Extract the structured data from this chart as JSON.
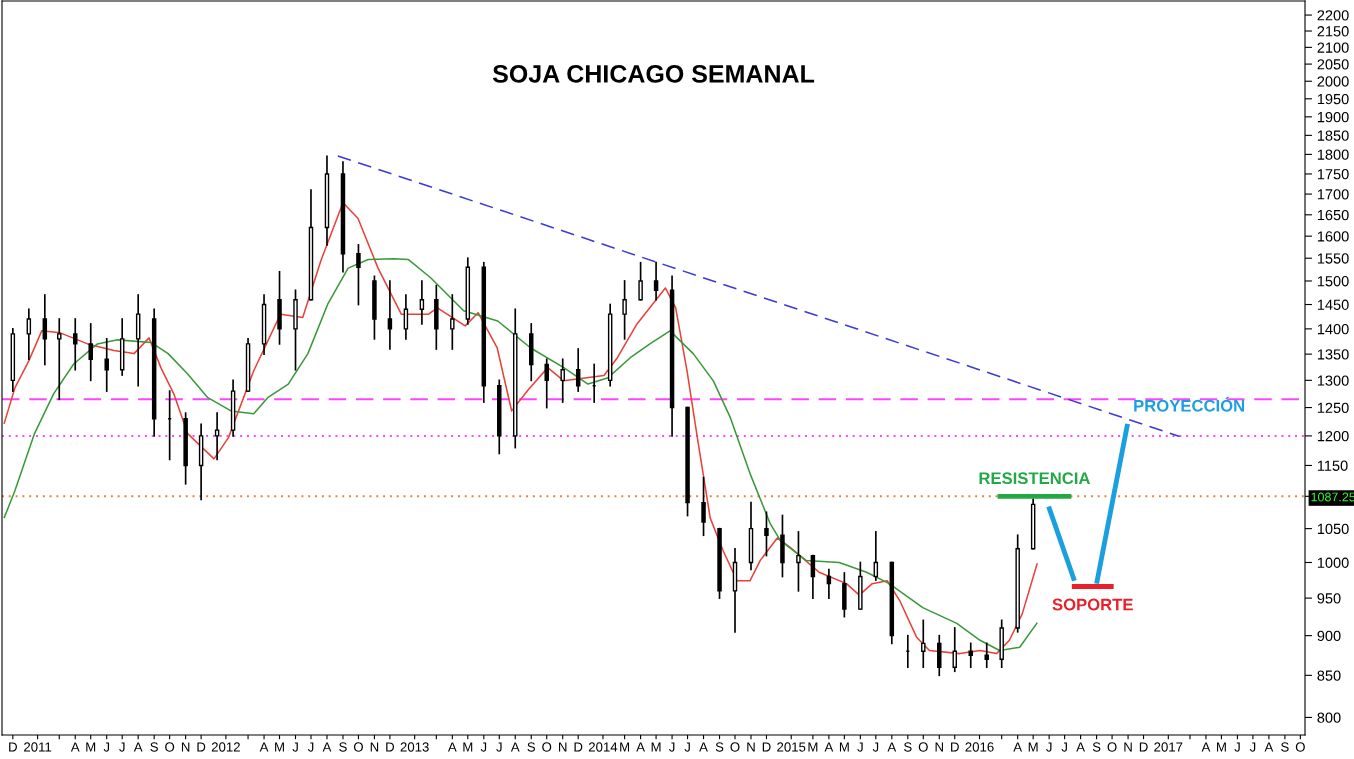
{
  "chart_data": {
    "type": "candlestick",
    "title": "SOJA CHICAGO SEMANAL",
    "color": "#000000",
    "x": [
      "2010-12-15",
      "2011-01-15",
      "2011-02-15",
      "2011-03-15",
      "2011-04-15",
      "2011-05-15",
      "2011-06-15",
      "2011-07-15",
      "2011-08-15",
      "2011-09-15",
      "2011-10-15",
      "2011-11-15",
      "2011-12-15",
      "2012-01-15",
      "2012-02-15",
      "2012-03-15",
      "2012-04-15",
      "2012-05-15",
      "2012-06-15",
      "2012-07-15",
      "2012-08-15",
      "2012-09-15",
      "2012-10-15",
      "2012-11-15",
      "2012-12-15",
      "2013-01-15",
      "2013-02-15",
      "2013-03-15",
      "2013-04-15",
      "2013-05-15",
      "2013-06-15",
      "2013-07-15",
      "2013-08-15",
      "2013-09-15",
      "2013-10-15",
      "2013-11-15",
      "2013-12-15",
      "2014-01-15",
      "2014-02-15",
      "2014-03-15",
      "2014-04-15",
      "2014-05-15",
      "2014-06-15",
      "2014-07-15",
      "2014-08-15",
      "2014-09-15",
      "2014-10-15",
      "2014-11-15",
      "2014-12-15",
      "2015-01-15",
      "2015-02-15",
      "2015-03-15",
      "2015-04-15",
      "2015-05-15",
      "2015-06-15",
      "2015-07-15",
      "2015-08-15",
      "2015-09-15",
      "2015-10-15",
      "2015-11-15",
      "2015-12-15",
      "2016-01-15",
      "2016-02-15",
      "2016-03-15",
      "2016-04-15",
      "2016-05-15"
    ],
    "ohlc": [
      [
        1300,
        1400,
        1280,
        1390
      ],
      [
        1390,
        1440,
        1340,
        1420
      ],
      [
        1420,
        1470,
        1330,
        1380
      ],
      [
        1380,
        1420,
        1265,
        1390
      ],
      [
        1390,
        1420,
        1320,
        1370
      ],
      [
        1370,
        1410,
        1300,
        1340
      ],
      [
        1340,
        1380,
        1280,
        1320
      ],
      [
        1320,
        1420,
        1310,
        1380
      ],
      [
        1380,
        1470,
        1290,
        1430
      ],
      [
        1420,
        1440,
        1200,
        1230
      ],
      [
        1230,
        1280,
        1160,
        1230
      ],
      [
        1230,
        1240,
        1120,
        1150
      ],
      [
        1150,
        1220,
        1095,
        1200
      ],
      [
        1200,
        1240,
        1160,
        1210
      ],
      [
        1210,
        1300,
        1200,
        1280
      ],
      [
        1280,
        1380,
        1280,
        1370
      ],
      [
        1370,
        1470,
        1350,
        1450
      ],
      [
        1460,
        1520,
        1370,
        1400
      ],
      [
        1400,
        1480,
        1320,
        1460
      ],
      [
        1460,
        1710,
        1460,
        1620
      ],
      [
        1620,
        1795,
        1580,
        1750
      ],
      [
        1750,
        1780,
        1520,
        1560
      ],
      [
        1560,
        1580,
        1450,
        1530
      ],
      [
        1500,
        1510,
        1380,
        1420
      ],
      [
        1420,
        1500,
        1360,
        1400
      ],
      [
        1400,
        1470,
        1380,
        1440
      ],
      [
        1440,
        1500,
        1410,
        1460
      ],
      [
        1460,
        1490,
        1360,
        1400
      ],
      [
        1400,
        1470,
        1360,
        1420
      ],
      [
        1420,
        1550,
        1410,
        1530
      ],
      [
        1530,
        1540,
        1260,
        1290
      ],
      [
        1290,
        1300,
        1170,
        1200
      ],
      [
        1200,
        1440,
        1180,
        1390
      ],
      [
        1390,
        1410,
        1300,
        1330
      ],
      [
        1330,
        1340,
        1250,
        1300
      ],
      [
        1300,
        1340,
        1260,
        1320
      ],
      [
        1320,
        1360,
        1280,
        1290
      ],
      [
        1290,
        1330,
        1260,
        1290
      ],
      [
        1300,
        1450,
        1290,
        1430
      ],
      [
        1430,
        1500,
        1380,
        1460
      ],
      [
        1460,
        1540,
        1460,
        1500
      ],
      [
        1500,
        1540,
        1460,
        1480
      ],
      [
        1480,
        1510,
        1200,
        1250
      ],
      [
        1250,
        1250,
        1070,
        1090
      ],
      [
        1090,
        1130,
        1040,
        1060
      ],
      [
        1050,
        1050,
        950,
        960
      ],
      [
        960,
        1020,
        905,
        1000
      ],
      [
        1000,
        1090,
        990,
        1050
      ],
      [
        1050,
        1075,
        1010,
        1040
      ],
      [
        1040,
        1070,
        980,
        1000
      ],
      [
        1000,
        1045,
        960,
        1010
      ],
      [
        1010,
        1010,
        950,
        980
      ],
      [
        980,
        990,
        950,
        970
      ],
      [
        970,
        985,
        925,
        935
      ],
      [
        935,
        1000,
        935,
        980
      ],
      [
        980,
        1045,
        975,
        1000
      ],
      [
        1000,
        1000,
        890,
        900
      ],
      [
        880,
        900,
        860,
        880
      ],
      [
        880,
        920,
        860,
        890
      ],
      [
        890,
        900,
        850,
        860
      ],
      [
        860,
        910,
        855,
        880
      ],
      [
        880,
        890,
        860,
        875
      ],
      [
        875,
        890,
        860,
        870
      ],
      [
        870,
        920,
        860,
        910
      ],
      [
        910,
        1040,
        905,
        1020
      ],
      [
        1020,
        1095,
        1020,
        1087.25
      ]
    ],
    "series": [
      {
        "type": "line",
        "color": "#e8413a",
        "x": [
          "2010-11-28",
          "2010-12-19",
          "2011-01-15",
          "2011-02-09",
          "2011-03-17",
          "2011-05-09",
          "2011-06-29",
          "2011-08-07",
          "2011-09-05",
          "2011-09-28",
          "2011-10-23",
          "2011-11-19",
          "2012-01-09",
          "2012-02-06",
          "2012-03-26",
          "2012-05-17",
          "2012-06-29",
          "2012-08-03",
          "2012-09-15",
          "2012-10-14",
          "2012-11-22",
          "2013-01-06",
          "2013-02-28",
          "2013-03-17",
          "2013-05-10",
          "2013-06-04",
          "2013-07-11",
          "2013-08-08",
          "2013-09-08",
          "2013-10-17",
          "2013-11-17",
          "2014-02-03",
          "2014-03-01",
          "2014-04-08",
          "2014-06-02",
          "2014-06-22",
          "2014-07-14",
          "2014-08-03",
          "2014-08-28",
          "2014-09-22",
          "2014-10-19",
          "2014-11-13",
          "2014-12-03",
          "2015-01-05",
          "2015-01-30",
          "2015-03-27",
          "2015-05-19",
          "2015-06-13",
          "2015-07-08",
          "2015-08-06",
          "2015-08-30",
          "2015-10-02",
          "2015-10-27",
          "2015-12-25",
          "2016-02-02",
          "2016-03-05",
          "2016-03-30",
          "2016-04-24",
          "2016-05-23"
        ],
        "values": [
          1221,
          1286,
          1337,
          1396,
          1392,
          1370,
          1357,
          1351,
          1382,
          1324,
          1275,
          1204,
          1161,
          1197,
          1318,
          1430,
          1423,
          1544,
          1679,
          1642,
          1528,
          1430,
          1430,
          1443,
          1406,
          1433,
          1362,
          1244,
          1281,
          1324,
          1299,
          1309,
          1343,
          1410,
          1485,
          1443,
          1318,
          1197,
          1066,
          1017,
          974,
          974,
          1003,
          1036,
          1022,
          986,
          970,
          954,
          970,
          974,
          947,
          898,
          881,
          877,
          881,
          877,
          894,
          929,
          999
        ]
      },
      {
        "type": "line",
        "color": "#3a983a",
        "x": [
          "2010-11-28",
          "2010-12-19",
          "2011-01-26",
          "2011-03-04",
          "2011-04-12",
          "2011-05-28",
          "2011-07-06",
          "2011-09-09",
          "2011-10-12",
          "2011-11-19",
          "2011-12-28",
          "2012-02-11",
          "2012-03-26",
          "2012-04-22",
          "2012-06-01",
          "2012-07-09",
          "2012-08-17",
          "2012-09-25",
          "2012-11-03",
          "2012-12-23",
          "2013-01-20",
          "2013-03-04",
          "2013-05-07",
          "2013-07-12",
          "2013-09-14",
          "2013-11-17",
          "2014-01-03",
          "2014-02-11",
          "2014-03-26",
          "2014-05-03",
          "2014-06-11",
          "2014-07-26",
          "2014-09-03",
          "2014-10-06",
          "2014-11-13",
          "2014-12-22",
          "2015-01-11",
          "2015-03-02",
          "2015-05-05",
          "2015-06-27",
          "2015-08-10",
          "2015-10-14",
          "2015-12-19",
          "2016-02-02",
          "2016-03-11",
          "2016-04-19",
          "2016-05-23"
        ],
        "values": [
          1066,
          1109,
          1204,
          1275,
          1331,
          1370,
          1378,
          1373,
          1351,
          1312,
          1268,
          1244,
          1239,
          1268,
          1293,
          1351,
          1452,
          1528,
          1547,
          1549,
          1547,
          1507,
          1437,
          1416,
          1362,
          1324,
          1293,
          1305,
          1343,
          1370,
          1396,
          1351,
          1299,
          1232,
          1137,
          1058,
          1032,
          1003,
          1000,
          986,
          970,
          937,
          916,
          894,
          881,
          885,
          917
        ]
      },
      {
        "type": "line",
        "color": "#3a3ad8",
        "line_style": "dashed",
        "x": [
          "2012-09-05",
          "2017-02-23"
        ],
        "values": [
          1796,
          1199
        ]
      },
      {
        "type": "line",
        "name": "RESISTENCIA",
        "color": "#22a845",
        "x": [
          "2016-03-07",
          "2016-07-28"
        ],
        "values": [
          1100,
          1100
        ]
      },
      {
        "type": "line",
        "name": "SOPORTE",
        "color": "#e8202a",
        "x": [
          "2016-07-29",
          "2016-10-18"
        ],
        "values": [
          966,
          966
        ]
      },
      {
        "type": "line",
        "color": "#1aa0e0",
        "x": [
          "2016-06-14",
          "2016-08-03"
        ],
        "values": [
          1084,
          974
        ]
      },
      {
        "type": "line",
        "name": "PROYECCIÓN",
        "color": "#1aa0e0",
        "x": [
          "2016-09-15",
          "2016-11-14"
        ],
        "values": [
          970,
          1221
        ]
      }
    ],
    "ref_lines": [
      {
        "axis": "y",
        "value": 1265,
        "color": "#ff44ff",
        "line_style": "dashed"
      },
      {
        "axis": "y",
        "value": 1200,
        "color": "#ff44ff",
        "line_style": "dotted"
      },
      {
        "axis": "y",
        "value": 1100,
        "color": "#e8803a",
        "line_style": "dotted"
      }
    ],
    "annotations": [
      "1087.25"
    ],
    "log": "y",
    "grid": false,
    "legend": false,
    "xlim": [
      "2010-11-24",
      "2017-10-24"
    ],
    "xticks": [
      {
        "value": "2010-12-15",
        "label": "D"
      },
      {
        "value": "2011-02-01",
        "label": "2011"
      },
      {
        "value": "2011-03-15",
        "label": null
      },
      {
        "value": "2011-04-15",
        "label": "A"
      },
      {
        "value": "2011-05-15",
        "label": "M"
      },
      {
        "value": "2011-06-15",
        "label": "J"
      },
      {
        "value": "2011-07-15",
        "label": "J"
      },
      {
        "value": "2011-08-15",
        "label": "A"
      },
      {
        "value": "2011-09-15",
        "label": "S"
      },
      {
        "value": "2011-10-15",
        "label": "O"
      },
      {
        "value": "2011-11-15",
        "label": "N"
      },
      {
        "value": "2011-12-15",
        "label": "D"
      },
      {
        "value": "2012-02-01",
        "label": "2012"
      },
      {
        "value": "2012-03-15",
        "label": null
      },
      {
        "value": "2012-04-15",
        "label": "A"
      },
      {
        "value": "2012-05-15",
        "label": "M"
      },
      {
        "value": "2012-06-15",
        "label": "J"
      },
      {
        "value": "2012-07-15",
        "label": "J"
      },
      {
        "value": "2012-08-15",
        "label": "A"
      },
      {
        "value": "2012-09-15",
        "label": "S"
      },
      {
        "value": "2012-10-15",
        "label": "O"
      },
      {
        "value": "2012-11-15",
        "label": "N"
      },
      {
        "value": "2012-12-15",
        "label": "D"
      },
      {
        "value": "2013-02-01",
        "label": "2013"
      },
      {
        "value": "2013-03-15",
        "label": null
      },
      {
        "value": "2013-04-15",
        "label": "A"
      },
      {
        "value": "2013-05-15",
        "label": "M"
      },
      {
        "value": "2013-06-15",
        "label": "J"
      },
      {
        "value": "2013-07-15",
        "label": "J"
      },
      {
        "value": "2013-08-15",
        "label": "A"
      },
      {
        "value": "2013-09-15",
        "label": "S"
      },
      {
        "value": "2013-10-15",
        "label": "O"
      },
      {
        "value": "2013-11-15",
        "label": "N"
      },
      {
        "value": "2013-12-15",
        "label": "D"
      },
      {
        "value": "2014-02-01",
        "label": "2014"
      },
      {
        "value": "2014-03-15",
        "label": "M"
      },
      {
        "value": "2014-04-15",
        "label": "A"
      },
      {
        "value": "2014-05-15",
        "label": "M"
      },
      {
        "value": "2014-06-15",
        "label": "J"
      },
      {
        "value": "2014-07-15",
        "label": "J"
      },
      {
        "value": "2014-08-15",
        "label": "A"
      },
      {
        "value": "2014-09-15",
        "label": "S"
      },
      {
        "value": "2014-10-15",
        "label": "O"
      },
      {
        "value": "2014-11-15",
        "label": "N"
      },
      {
        "value": "2014-12-15",
        "label": "D"
      },
      {
        "value": "2015-02-01",
        "label": "2015"
      },
      {
        "value": "2015-03-15",
        "label": "M"
      },
      {
        "value": "2015-04-15",
        "label": "A"
      },
      {
        "value": "2015-05-15",
        "label": "M"
      },
      {
        "value": "2015-06-15",
        "label": "J"
      },
      {
        "value": "2015-07-15",
        "label": "J"
      },
      {
        "value": "2015-08-15",
        "label": "A"
      },
      {
        "value": "2015-09-15",
        "label": "S"
      },
      {
        "value": "2015-10-15",
        "label": "O"
      },
      {
        "value": "2015-11-15",
        "label": "N"
      },
      {
        "value": "2015-12-15",
        "label": "D"
      },
      {
        "value": "2016-02-01",
        "label": "2016"
      },
      {
        "value": "2016-03-15",
        "label": null
      },
      {
        "value": "2016-04-15",
        "label": "A"
      },
      {
        "value": "2016-05-15",
        "label": "M"
      },
      {
        "value": "2016-06-15",
        "label": "J"
      },
      {
        "value": "2016-07-15",
        "label": "J"
      },
      {
        "value": "2016-08-15",
        "label": "A"
      },
      {
        "value": "2016-09-15",
        "label": "S"
      },
      {
        "value": "2016-10-15",
        "label": "O"
      },
      {
        "value": "2016-11-15",
        "label": "N"
      },
      {
        "value": "2016-12-15",
        "label": "D"
      },
      {
        "value": "2017-02-01",
        "label": "2017"
      },
      {
        "value": "2017-03-15",
        "label": null
      },
      {
        "value": "2017-04-15",
        "label": "A"
      },
      {
        "value": "2017-05-15",
        "label": "M"
      },
      {
        "value": "2017-06-15",
        "label": "J"
      },
      {
        "value": "2017-07-15",
        "label": "J"
      },
      {
        "value": "2017-08-15",
        "label": "A"
      },
      {
        "value": "2017-09-15",
        "label": "S"
      },
      {
        "value": "2017-10-15",
        "label": "O"
      }
    ],
    "ylim": [
      780,
      2245
    ],
    "yticks": [
      800,
      850,
      900,
      950,
      1000,
      1050,
      {
        "value": 1100,
        "label": null
      },
      1150,
      1200,
      1250,
      1300,
      1350,
      1400,
      1450,
      1500,
      1550,
      1600,
      1650,
      1700,
      1750,
      1800,
      1850,
      1900,
      1950,
      2000,
      2050,
      2100,
      2150,
      2200
    ]
  }
}
